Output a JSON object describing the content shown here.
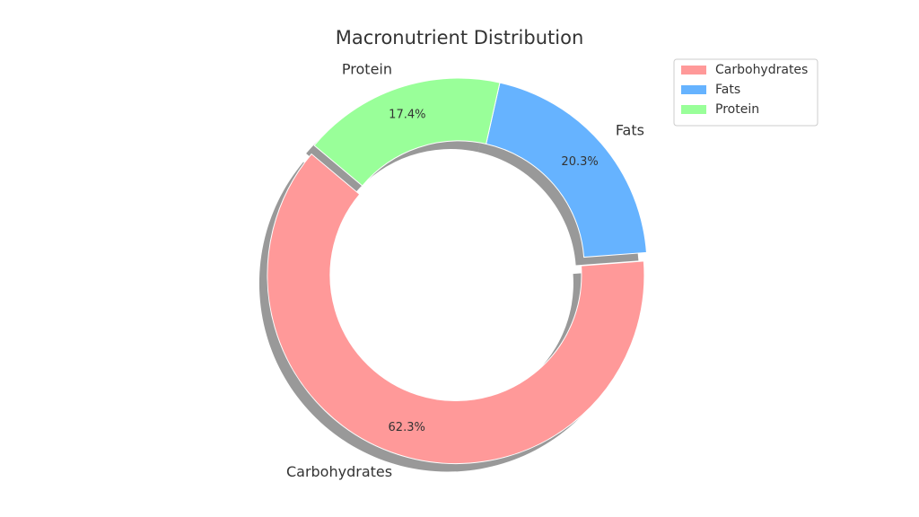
{
  "chart_data": {
    "type": "donut",
    "title": "Macronutrient Distribution",
    "categories": [
      "Carbohydrates",
      "Fats",
      "Protein"
    ],
    "values": [
      62.3,
      20.3,
      17.4
    ],
    "value_labels": [
      "62.3%",
      "20.3%",
      "17.4%"
    ],
    "colors": [
      "#ff9999",
      "#66b3ff",
      "#99ff99"
    ],
    "legend": "upper right"
  }
}
